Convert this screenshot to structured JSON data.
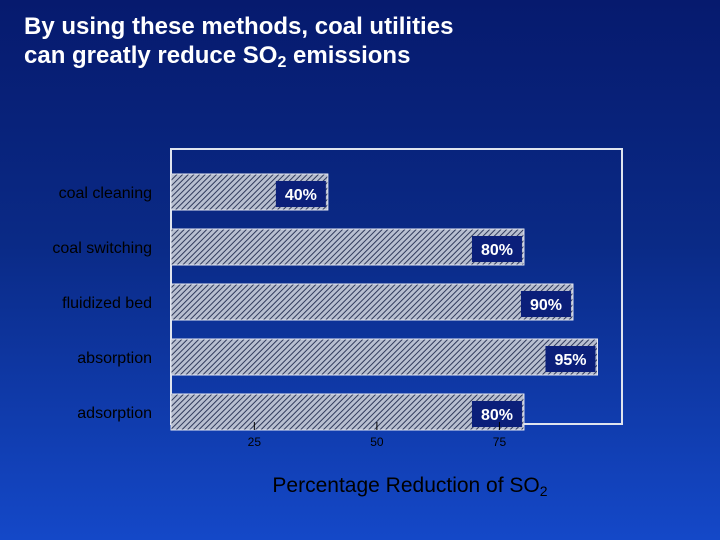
{
  "title": {
    "line1": "By using these methods, coal utilities",
    "line2_pre": "can greatly reduce SO",
    "line2_sub": "2",
    "line2_post": " emissions"
  },
  "colors": {
    "background_top": "#061a6e",
    "background_bottom": "#1448c8",
    "bar_fill": "#b8bfd0",
    "bar_hatch": "#303a5c",
    "label_box": "#0b1f7a",
    "plot_border": "#dfe4ee"
  },
  "chart_data": {
    "type": "bar",
    "orientation": "horizontal",
    "categories": [
      "coal cleaning",
      "coal switching",
      "fluidized bed",
      "absorption",
      "adsorption"
    ],
    "values": [
      40,
      80,
      90,
      95,
      80
    ],
    "value_labels": [
      "40%",
      "80%",
      "90%",
      "95%",
      "80%"
    ],
    "xlabel_pre": "Percentage Reduction of SO",
    "xlabel_sub": "2",
    "xticks": [
      25,
      50,
      75
    ],
    "xlim": [
      8,
      100
    ],
    "grid": false,
    "legend": "none"
  }
}
